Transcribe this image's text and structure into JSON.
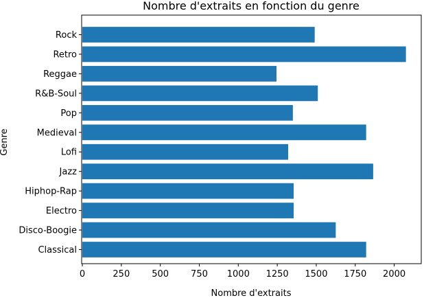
{
  "chart_data": {
    "type": "bar",
    "orientation": "horizontal",
    "title": "Nombre d'extraits en fonction du genre",
    "xlabel": "Nombre d'extraits",
    "ylabel": "Genre",
    "categories": [
      "Classical",
      "Disco-Boogie",
      "Electro",
      "Hiphop-Rap",
      "Jazz",
      "Lofi",
      "Medieval",
      "Pop",
      "R&B-Soul",
      "Reggae",
      "Retro",
      "Rock"
    ],
    "values": [
      1820,
      1625,
      1355,
      1355,
      1865,
      1320,
      1820,
      1350,
      1510,
      1245,
      2075,
      1490
    ],
    "xlim": [
      0,
      2130
    ],
    "xticks": [
      0,
      250,
      500,
      750,
      1000,
      1250,
      1500,
      1750,
      2000
    ],
    "xtick_labels": [
      "0",
      "250",
      "500",
      "750",
      "1000",
      "1250",
      "1500",
      "1750",
      "2000"
    ],
    "bar_color": "#1f77b4",
    "grid": false,
    "legend": "none"
  }
}
